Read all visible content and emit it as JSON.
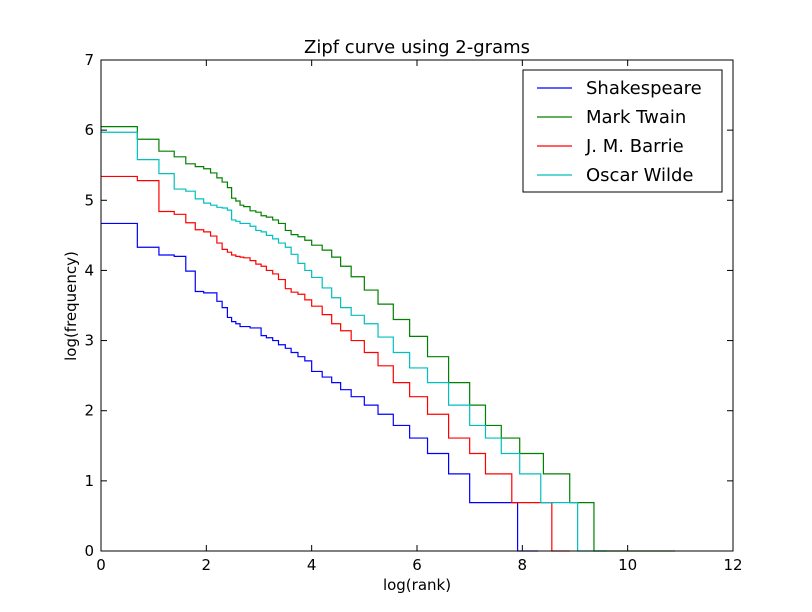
{
  "chart_data": {
    "type": "line",
    "title": "Zipf curve using 2-grams",
    "xlabel": "log(rank)",
    "ylabel": "log(frequency)",
    "xlim": [
      0,
      12
    ],
    "ylim": [
      0,
      7
    ],
    "xticks": [
      "0",
      "2",
      "4",
      "6",
      "8",
      "10",
      "12"
    ],
    "yticks": [
      "0",
      "1",
      "2",
      "3",
      "4",
      "5",
      "6",
      "7"
    ],
    "grid": false,
    "legend_position": "top-right",
    "series": [
      {
        "name": "Shakespeare",
        "color": "#0000ff",
        "points": [
          [
            0,
            4.67
          ],
          [
            0.69,
            4.33
          ],
          [
            1.1,
            4.22
          ],
          [
            1.39,
            4.2
          ],
          [
            1.61,
            3.99
          ],
          [
            1.79,
            3.7
          ],
          [
            1.95,
            3.68
          ],
          [
            2.08,
            3.68
          ],
          [
            2.2,
            3.56
          ],
          [
            2.3,
            3.47
          ],
          [
            2.4,
            3.33
          ],
          [
            2.48,
            3.27
          ],
          [
            2.56,
            3.24
          ],
          [
            2.64,
            3.2
          ],
          [
            2.71,
            3.2
          ],
          [
            2.83,
            3.18
          ],
          [
            2.94,
            3.18
          ],
          [
            3.04,
            3.07
          ],
          [
            3.14,
            3.04
          ],
          [
            3.26,
            3.0
          ],
          [
            3.37,
            2.94
          ],
          [
            3.5,
            2.89
          ],
          [
            3.61,
            2.83
          ],
          [
            3.74,
            2.77
          ],
          [
            3.87,
            2.71
          ],
          [
            4.0,
            2.56
          ],
          [
            4.2,
            2.48
          ],
          [
            4.38,
            2.4
          ],
          [
            4.55,
            2.3
          ],
          [
            4.75,
            2.2
          ],
          [
            5.0,
            2.08
          ],
          [
            5.26,
            1.95
          ],
          [
            5.55,
            1.79
          ],
          [
            5.86,
            1.61
          ],
          [
            6.2,
            1.39
          ],
          [
            6.6,
            1.1
          ],
          [
            7.0,
            0.69
          ],
          [
            7.9,
            0.69
          ],
          [
            7.91,
            0.0
          ],
          [
            8.3,
            0.0
          ]
        ]
      },
      {
        "name": "Mark Twain",
        "color": "#008000",
        "points": [
          [
            0,
            6.05
          ],
          [
            0.69,
            5.87
          ],
          [
            1.1,
            5.7
          ],
          [
            1.39,
            5.62
          ],
          [
            1.61,
            5.52
          ],
          [
            1.79,
            5.48
          ],
          [
            1.95,
            5.45
          ],
          [
            2.08,
            5.39
          ],
          [
            2.2,
            5.32
          ],
          [
            2.3,
            5.26
          ],
          [
            2.4,
            5.18
          ],
          [
            2.48,
            5.03
          ],
          [
            2.56,
            4.99
          ],
          [
            2.64,
            4.93
          ],
          [
            2.71,
            4.91
          ],
          [
            2.83,
            4.85
          ],
          [
            2.94,
            4.83
          ],
          [
            3.04,
            4.78
          ],
          [
            3.14,
            4.76
          ],
          [
            3.26,
            4.72
          ],
          [
            3.37,
            4.67
          ],
          [
            3.5,
            4.57
          ],
          [
            3.61,
            4.51
          ],
          [
            3.74,
            4.48
          ],
          [
            3.87,
            4.43
          ],
          [
            4.0,
            4.36
          ],
          [
            4.2,
            4.29
          ],
          [
            4.38,
            4.19
          ],
          [
            4.55,
            4.06
          ],
          [
            4.75,
            3.91
          ],
          [
            5.0,
            3.72
          ],
          [
            5.26,
            3.52
          ],
          [
            5.55,
            3.3
          ],
          [
            5.86,
            3.06
          ],
          [
            6.2,
            2.77
          ],
          [
            6.6,
            2.4
          ],
          [
            7.0,
            2.08
          ],
          [
            7.3,
            1.79
          ],
          [
            7.6,
            1.61
          ],
          [
            7.95,
            1.39
          ],
          [
            8.4,
            1.1
          ],
          [
            8.9,
            0.69
          ],
          [
            9.35,
            0.69
          ],
          [
            9.36,
            0.0
          ],
          [
            10.9,
            0.0
          ]
        ]
      },
      {
        "name": "J. M. Barrie",
        "color": "#ff0000",
        "points": [
          [
            0,
            5.34
          ],
          [
            0.69,
            5.28
          ],
          [
            1.1,
            4.84
          ],
          [
            1.39,
            4.8
          ],
          [
            1.61,
            4.68
          ],
          [
            1.79,
            4.58
          ],
          [
            1.95,
            4.55
          ],
          [
            2.08,
            4.49
          ],
          [
            2.2,
            4.39
          ],
          [
            2.3,
            4.3
          ],
          [
            2.4,
            4.26
          ],
          [
            2.48,
            4.22
          ],
          [
            2.56,
            4.2
          ],
          [
            2.64,
            4.19
          ],
          [
            2.71,
            4.18
          ],
          [
            2.83,
            4.14
          ],
          [
            2.94,
            4.09
          ],
          [
            3.04,
            4.06
          ],
          [
            3.14,
            4.0
          ],
          [
            3.26,
            3.95
          ],
          [
            3.37,
            3.87
          ],
          [
            3.5,
            3.74
          ],
          [
            3.61,
            3.69
          ],
          [
            3.74,
            3.66
          ],
          [
            3.87,
            3.58
          ],
          [
            4.0,
            3.49
          ],
          [
            4.2,
            3.37
          ],
          [
            4.38,
            3.24
          ],
          [
            4.55,
            3.14
          ],
          [
            4.75,
            3.0
          ],
          [
            5.0,
            2.83
          ],
          [
            5.26,
            2.64
          ],
          [
            5.55,
            2.4
          ],
          [
            5.86,
            2.2
          ],
          [
            6.2,
            1.95
          ],
          [
            6.6,
            1.61
          ],
          [
            7.0,
            1.39
          ],
          [
            7.3,
            1.1
          ],
          [
            7.8,
            0.69
          ],
          [
            8.55,
            0.69
          ],
          [
            8.56,
            0.0
          ],
          [
            8.9,
            0.0
          ]
        ]
      },
      {
        "name": "Oscar Wilde",
        "color": "#00bfbf",
        "points": [
          [
            0,
            5.97
          ],
          [
            0.69,
            5.58
          ],
          [
            1.1,
            5.38
          ],
          [
            1.39,
            5.16
          ],
          [
            1.61,
            5.13
          ],
          [
            1.79,
            5.02
          ],
          [
            1.95,
            4.96
          ],
          [
            2.08,
            4.93
          ],
          [
            2.2,
            4.9
          ],
          [
            2.3,
            4.89
          ],
          [
            2.4,
            4.86
          ],
          [
            2.48,
            4.72
          ],
          [
            2.56,
            4.7
          ],
          [
            2.64,
            4.67
          ],
          [
            2.71,
            4.67
          ],
          [
            2.83,
            4.63
          ],
          [
            2.94,
            4.57
          ],
          [
            3.04,
            4.55
          ],
          [
            3.14,
            4.5
          ],
          [
            3.26,
            4.45
          ],
          [
            3.37,
            4.39
          ],
          [
            3.5,
            4.33
          ],
          [
            3.61,
            4.23
          ],
          [
            3.74,
            4.1
          ],
          [
            3.87,
            4.0
          ],
          [
            4.0,
            3.9
          ],
          [
            4.2,
            3.75
          ],
          [
            4.38,
            3.61
          ],
          [
            4.55,
            3.47
          ],
          [
            4.75,
            3.36
          ],
          [
            5.0,
            3.24
          ],
          [
            5.26,
            3.05
          ],
          [
            5.55,
            2.83
          ],
          [
            5.86,
            2.61
          ],
          [
            6.2,
            2.4
          ],
          [
            6.6,
            2.08
          ],
          [
            7.0,
            1.79
          ],
          [
            7.3,
            1.61
          ],
          [
            7.6,
            1.39
          ],
          [
            7.95,
            1.1
          ],
          [
            8.35,
            0.69
          ],
          [
            9.04,
            0.69
          ],
          [
            9.05,
            0.0
          ],
          [
            9.6,
            0.0
          ]
        ]
      }
    ]
  }
}
